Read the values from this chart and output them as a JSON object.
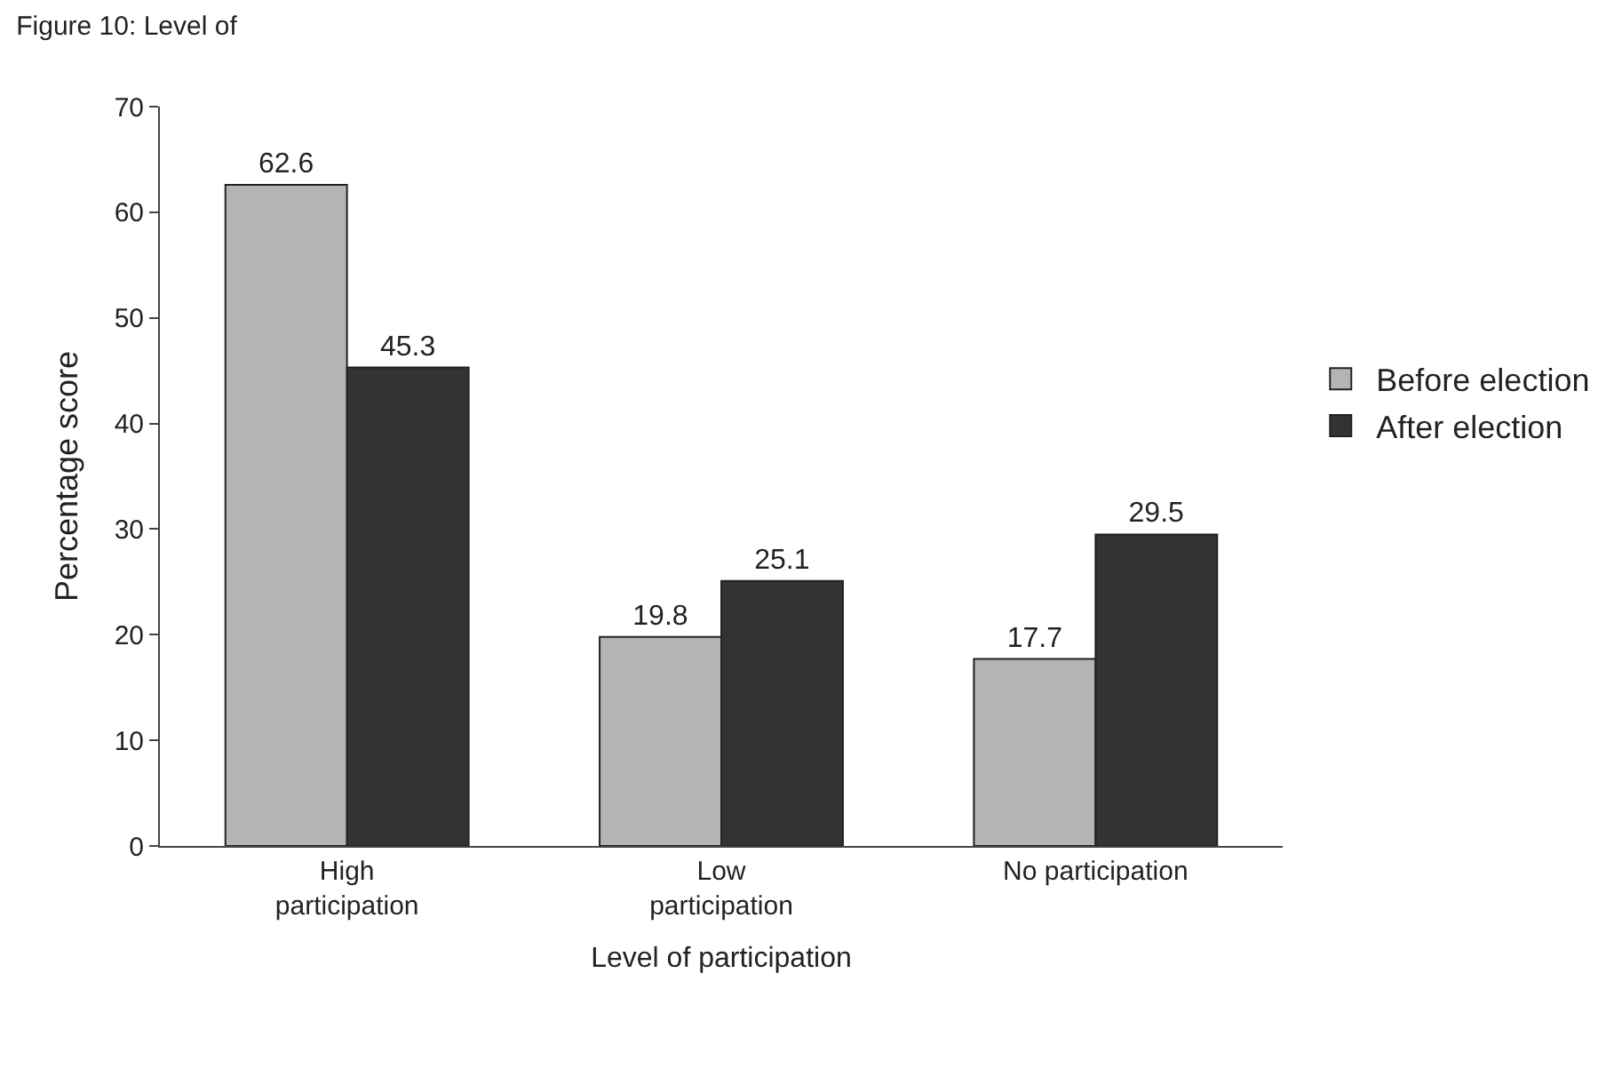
{
  "chart_data": {
    "type": "bar",
    "title": "Figure 10: Level of",
    "categories": [
      "High participation",
      "Low participation",
      "No participation"
    ],
    "series": [
      {
        "name": "Before election",
        "color": "#b4b4b4",
        "values": [
          62.6,
          19.8,
          17.7
        ]
      },
      {
        "name": "After election",
        "color": "#333333",
        "values": [
          45.3,
          25.1,
          29.5
        ]
      }
    ],
    "xlabel": "Level of participation",
    "ylabel": "Percentage score",
    "ylim": [
      0,
      70
    ],
    "yticks": [
      0,
      10,
      20,
      30,
      40,
      50,
      60,
      70
    ],
    "legend": "right",
    "data_labels": true
  }
}
